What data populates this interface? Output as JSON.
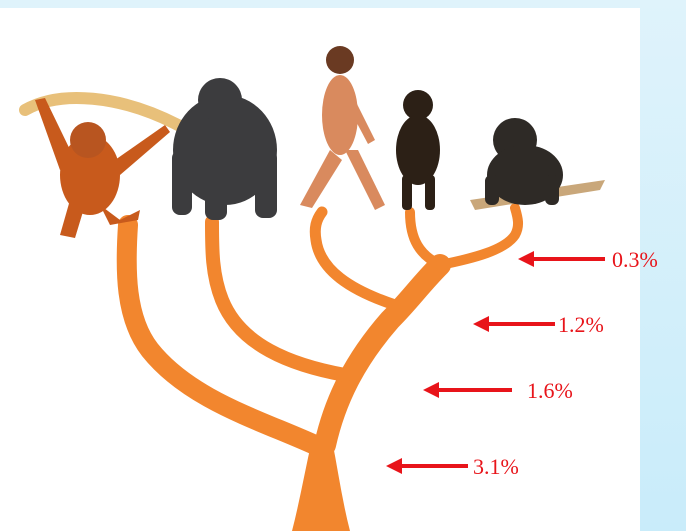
{
  "divergences": [
    {
      "label": "0.3%"
    },
    {
      "label": "1.2%"
    },
    {
      "label": "1.6%"
    },
    {
      "label": "3.1%"
    }
  ]
}
